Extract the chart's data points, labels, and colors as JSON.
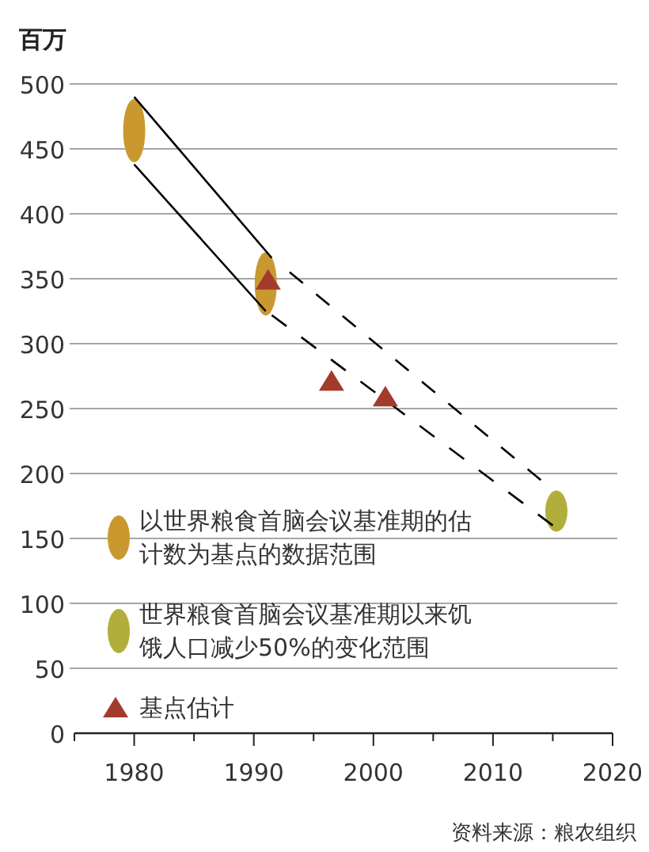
{
  "chart_data": {
    "type": "scatter",
    "ylabel": "百万",
    "xlim": [
      1975,
      2020
    ],
    "xticks": [
      {
        "value": 1975,
        "label": null
      },
      1980,
      {
        "value": 1985,
        "label": null
      },
      1990,
      {
        "value": 1995,
        "label": null
      },
      2000,
      {
        "value": 2005,
        "label": null
      },
      2010,
      {
        "value": 2015,
        "label": null
      },
      2020
    ],
    "ylim": [
      0,
      500
    ],
    "yticks": [
      0,
      50,
      100,
      150,
      200,
      250,
      300,
      350,
      400,
      450,
      500
    ],
    "grid": "y",
    "legend": "bottom left",
    "annotations": [
      "资料来源：粮农组织"
    ],
    "series": [
      {
        "type": "line",
        "color": "#000000",
        "line_style": "solid",
        "marker": "none",
        "x": [
          1980,
          1991.5
        ],
        "values": [
          490,
          366
        ]
      },
      {
        "type": "line",
        "color": "#000000",
        "line_style": "solid",
        "marker": "none",
        "x": [
          1980,
          1991
        ],
        "values": [
          438,
          325
        ]
      },
      {
        "type": "line",
        "color": "#000000",
        "line_style": "dashed",
        "marker": "none",
        "x": [
          1993,
          2014
        ],
        "values": [
          355,
          195
        ]
      },
      {
        "type": "line",
        "color": "#000000",
        "line_style": "dashed",
        "marker": "none",
        "x": [
          1991.5,
          2015
        ],
        "values": [
          322,
          160
        ]
      },
      {
        "name": "以世界粮食首脑会议基准期的估计数为基点的数据范围",
        "marker": "circle",
        "color": "#c9992f",
        "x": [
          1980,
          1991
        ],
        "values": [
          464,
          346
        ]
      },
      {
        "name": "世界粮食首脑会议基准期以来饥饿人口减少50%的变化范围",
        "marker": "circle",
        "color": "#b2ae3b",
        "x": [
          2015.3
        ],
        "values": [
          171
        ]
      },
      {
        "name": "基点估计",
        "marker": "triangle",
        "color": "#a23b2c",
        "x": [
          1991.2,
          1996.5,
          2001
        ],
        "values": [
          349,
          271,
          259
        ]
      }
    ]
  }
}
